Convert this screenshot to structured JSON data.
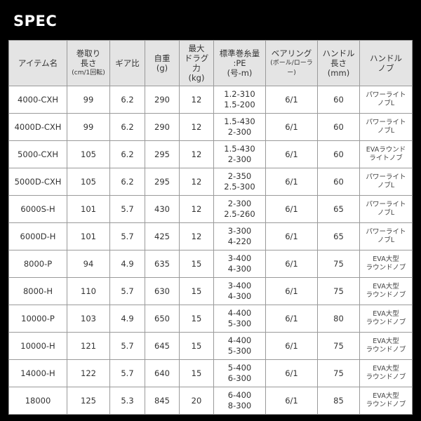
{
  "title": "SPEC",
  "headers": [
    {
      "lines": [
        "アイテム名"
      ]
    },
    {
      "lines": [
        "巻取り",
        "長さ"
      ],
      "small": "(cm/1回転)"
    },
    {
      "lines": [
        "ギア比"
      ]
    },
    {
      "lines": [
        "自重",
        "(g)"
      ]
    },
    {
      "lines": [
        "最大",
        "ドラグ",
        "力",
        "(kg)"
      ]
    },
    {
      "lines": [
        "標準巻糸量",
        ":PE",
        "(号-m)"
      ]
    },
    {
      "lines": [
        "ベアリング"
      ],
      "small": "(ボール/ローラー)"
    },
    {
      "lines": [
        "ハンドル",
        "長さ",
        "(mm)"
      ]
    },
    {
      "lines": [
        "ハンドル",
        "ノブ"
      ]
    }
  ],
  "rows": [
    {
      "item": "4000-CXH",
      "retrieve": "99",
      "gear": "6.2",
      "weight": "290",
      "drag": "12",
      "line": [
        "1.2-310",
        "1.5-200"
      ],
      "bearing": "6/1",
      "handle": "60",
      "knob": [
        "パワーライト",
        "ノブL"
      ]
    },
    {
      "item": "4000D-CXH",
      "retrieve": "99",
      "gear": "6.2",
      "weight": "290",
      "drag": "12",
      "line": [
        "1.5-430",
        "2-300"
      ],
      "bearing": "6/1",
      "handle": "60",
      "knob": [
        "パワーライト",
        "ノブL"
      ]
    },
    {
      "item": "5000-CXH",
      "retrieve": "105",
      "gear": "6.2",
      "weight": "295",
      "drag": "12",
      "line": [
        "1.5-430",
        "2-300"
      ],
      "bearing": "6/1",
      "handle": "60",
      "knob": [
        "EVAラウンド",
        "ライトノブ"
      ]
    },
    {
      "item": "5000D-CXH",
      "retrieve": "105",
      "gear": "6.2",
      "weight": "295",
      "drag": "12",
      "line": [
        "2-350",
        "2.5-300"
      ],
      "bearing": "6/1",
      "handle": "60",
      "knob": [
        "パワーライト",
        "ノブL"
      ]
    },
    {
      "item": "6000S-H",
      "retrieve": "101",
      "gear": "5.7",
      "weight": "430",
      "drag": "12",
      "line": [
        "2-300",
        "2.5-260"
      ],
      "bearing": "6/1",
      "handle": "65",
      "knob": [
        "パワーライト",
        "ノブL"
      ]
    },
    {
      "item": "6000D-H",
      "retrieve": "101",
      "gear": "5.7",
      "weight": "425",
      "drag": "12",
      "line": [
        "3-300",
        "4-220"
      ],
      "bearing": "6/1",
      "handle": "65",
      "knob": [
        "パワーライト",
        "ノブL"
      ]
    },
    {
      "item": "8000-P",
      "retrieve": "94",
      "gear": "4.9",
      "weight": "635",
      "drag": "15",
      "line": [
        "3-400",
        "4-300"
      ],
      "bearing": "6/1",
      "handle": "75",
      "knob": [
        "EVA大型",
        "ラウンドノブ"
      ]
    },
    {
      "item": "8000-H",
      "retrieve": "110",
      "gear": "5.7",
      "weight": "630",
      "drag": "15",
      "line": [
        "3-400",
        "4-300"
      ],
      "bearing": "6/1",
      "handle": "75",
      "knob": [
        "EVA大型",
        "ラウンドノブ"
      ]
    },
    {
      "item": "10000-P",
      "retrieve": "103",
      "gear": "4.9",
      "weight": "650",
      "drag": "15",
      "line": [
        "4-400",
        "5-300"
      ],
      "bearing": "6/1",
      "handle": "80",
      "knob": [
        "EVA大型",
        "ラウンドノブ"
      ]
    },
    {
      "item": "10000-H",
      "retrieve": "121",
      "gear": "5.7",
      "weight": "645",
      "drag": "15",
      "line": [
        "4-400",
        "5-300"
      ],
      "bearing": "6/1",
      "handle": "75",
      "knob": [
        "EVA大型",
        "ラウンドノブ"
      ]
    },
    {
      "item": "14000-H",
      "retrieve": "122",
      "gear": "5.7",
      "weight": "640",
      "drag": "15",
      "line": [
        "5-400",
        "6-300"
      ],
      "bearing": "6/1",
      "handle": "75",
      "knob": [
        "EVA大型",
        "ラウンドノブ"
      ]
    },
    {
      "item": "18000",
      "retrieve": "125",
      "gear": "5.3",
      "weight": "845",
      "drag": "20",
      "line": [
        "6-400",
        "8-300"
      ],
      "bearing": "6/1",
      "handle": "85",
      "knob": [
        "EVA大型",
        "ラウンドノブ"
      ]
    }
  ]
}
